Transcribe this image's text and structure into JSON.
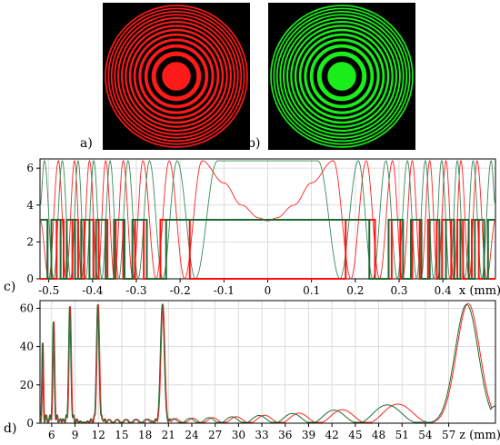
{
  "panels": {
    "a": {
      "label": "a)",
      "zone_color": "#ff1a1a"
    },
    "b": {
      "label": "b)",
      "zone_color": "#1aee1a"
    },
    "c": {
      "label": "c)"
    },
    "d": {
      "label": "d)"
    }
  },
  "chart_data": [
    {
      "type": "line",
      "panel": "c",
      "title": "",
      "xlabel": "x (mm)",
      "ylabel": "",
      "xlim": [
        -0.52,
        0.52
      ],
      "ylim": [
        0,
        6.5
      ],
      "x_ticks": [
        -0.5,
        -0.4,
        -0.3,
        -0.2,
        -0.1,
        0,
        0.1,
        0.2,
        0.3,
        0.4
      ],
      "x_tick_labels": [
        "-0.5",
        "-0.4",
        "-0.3",
        "-0.2",
        "-0.1",
        "0",
        "0.1",
        "0.2",
        "0.3",
        "0.4"
      ],
      "y_ticks": [
        0,
        2,
        4,
        6
      ],
      "y_tick_labels": [
        "0",
        "2",
        "4",
        "6"
      ],
      "grid": true,
      "series": [
        {
          "color": "#ff2020",
          "width": 0.9,
          "style": "smooth",
          "x": [
            -0.52,
            -0.5,
            -0.478,
            -0.46,
            -0.441,
            -0.425,
            -0.407,
            -0.388,
            -0.37,
            -0.35,
            -0.33,
            -0.308,
            -0.285,
            -0.255,
            -0.225,
            -0.19,
            -0.15,
            -0.1,
            -0.06,
            -0.02,
            0,
            0.02,
            0.06,
            0.1,
            0.15,
            0.19,
            0.225,
            0.255,
            0.285,
            0.308,
            0.33,
            0.35,
            0.37,
            0.388,
            0.407,
            0.425,
            0.441,
            0.46,
            0.478,
            0.5,
            0.52
          ],
          "y": [
            3.2,
            0,
            6.4,
            0,
            6.4,
            0,
            6.4,
            0,
            6.4,
            0,
            6.4,
            0,
            6.4,
            0,
            6.4,
            0,
            6.4,
            5.2,
            4.0,
            3.3,
            3.14,
            3.3,
            4.0,
            5.2,
            6.4,
            0,
            6.4,
            0,
            6.4,
            0,
            6.4,
            0,
            6.4,
            0,
            6.4,
            0,
            6.4,
            0,
            6.4,
            0,
            3.2
          ]
        },
        {
          "color": "#3a8a5a",
          "width": 0.9,
          "style": "smooth",
          "x": [
            -0.52,
            -0.51,
            -0.489,
            -0.469,
            -0.45,
            -0.433,
            -0.416,
            -0.397,
            -0.379,
            -0.36,
            -0.34,
            -0.319,
            -0.296,
            -0.27,
            -0.24,
            -0.207,
            -0.165,
            -0.115,
            -0.07,
            0,
            0.07,
            0.115,
            0.165,
            0.207,
            0.24,
            0.27,
            0.296,
            0.319,
            0.34,
            0.36,
            0.379,
            0.397,
            0.416,
            0.433,
            0.45,
            0.469,
            0.489,
            0.51,
            0.52
          ],
          "y": [
            3.9,
            6.4,
            0,
            6.4,
            0,
            6.4,
            0,
            6.4,
            0,
            6.4,
            0,
            6.4,
            0,
            6.4,
            0,
            6.4,
            0,
            6.4,
            6.4,
            6.4,
            6.4,
            6.4,
            0,
            6.4,
            0,
            6.4,
            0,
            6.4,
            0,
            6.4,
            0,
            6.4,
            0,
            6.4,
            0,
            6.4,
            0,
            6.4,
            4.0
          ]
        },
        {
          "color": "#ff1010",
          "width": 2.0,
          "style": "step",
          "x": [
            -0.52,
            -0.482,
            -0.466,
            -0.446,
            -0.433,
            -0.419,
            -0.398,
            -0.386,
            -0.366,
            -0.347,
            -0.33,
            -0.303,
            -0.283,
            -0.245,
            -0.178,
            0.178,
            0.245,
            0.283,
            0.303,
            0.33,
            0.347,
            0.366,
            0.386,
            0.398,
            0.419,
            0.433,
            0.446,
            0.466,
            0.482,
            0.52
          ],
          "y": [
            0,
            3.2,
            0,
            3.2,
            0,
            3.2,
            0,
            3.2,
            0,
            3.2,
            0,
            3.2,
            0,
            3.2,
            0,
            3.2,
            0,
            3.2,
            0,
            3.2,
            0,
            3.2,
            0,
            3.2,
            0,
            3.2,
            0,
            3.2,
            0,
            0
          ]
        },
        {
          "color": "#1e6a32",
          "width": 2.0,
          "style": "step",
          "x": [
            -0.52,
            -0.503,
            -0.494,
            -0.473,
            -0.459,
            -0.44,
            -0.426,
            -0.407,
            -0.392,
            -0.37,
            -0.351,
            -0.327,
            -0.309,
            -0.276,
            -0.232,
            0.232,
            0.276,
            0.309,
            0.327,
            0.351,
            0.37,
            0.392,
            0.407,
            0.426,
            0.44,
            0.459,
            0.473,
            0.494,
            0.503,
            0.52
          ],
          "y": [
            3.2,
            0,
            3.2,
            0,
            3.2,
            0,
            3.2,
            0,
            3.2,
            0,
            3.2,
            0,
            3.2,
            0,
            3.2,
            0,
            3.2,
            0,
            3.2,
            0,
            3.2,
            0,
            3.2,
            0,
            3.2,
            0,
            3.2,
            0,
            3.2,
            3.2
          ]
        }
      ]
    },
    {
      "type": "line",
      "panel": "d",
      "title": "",
      "xlabel": "z (mm)",
      "ylabel": "",
      "xlim": [
        4.5,
        63
      ],
      "ylim": [
        0,
        64
      ],
      "x_ticks": [
        6,
        9,
        12,
        15,
        18,
        21,
        24,
        27,
        30,
        33,
        36,
        39,
        42,
        45,
        48,
        51,
        54,
        57
      ],
      "x_tick_labels": [
        "6",
        "9",
        "12",
        "15",
        "18",
        "21",
        "24",
        "27",
        "30",
        "33",
        "36",
        "39",
        "42",
        "45",
        "48",
        "51",
        "54",
        "57"
      ],
      "y_ticks": [
        0,
        20,
        40,
        60
      ],
      "y_tick_labels": [
        "0",
        "20",
        "40",
        "60"
      ],
      "grid": true,
      "series": [
        {
          "color": "#ff2020",
          "width": 1.0,
          "peaks": [
            [
              4.9,
              42
            ],
            [
              6.3,
              53
            ],
            [
              8.4,
              61
            ],
            [
              12.0,
              62
            ],
            [
              20.3,
              62
            ],
            [
              59.5,
              62.5
            ]
          ],
          "oscillation": {
            "start": 12.5,
            "end": 54.5,
            "base_start": 2,
            "base_end": 12,
            "period_start": 0.9,
            "period_end": 2.9
          }
        },
        {
          "color": "#1e6a32",
          "width": 1.0,
          "peaks": [
            [
              4.8,
              42
            ],
            [
              6.2,
              53
            ],
            [
              8.3,
              61
            ],
            [
              11.9,
              62
            ],
            [
              20.2,
              62
            ],
            [
              59.3,
              62
            ]
          ],
          "oscillation": {
            "start": 12.4,
            "end": 54.0,
            "base_start": 2,
            "base_end": 12,
            "period_start": 0.88,
            "period_end": 2.85
          }
        }
      ]
    }
  ]
}
